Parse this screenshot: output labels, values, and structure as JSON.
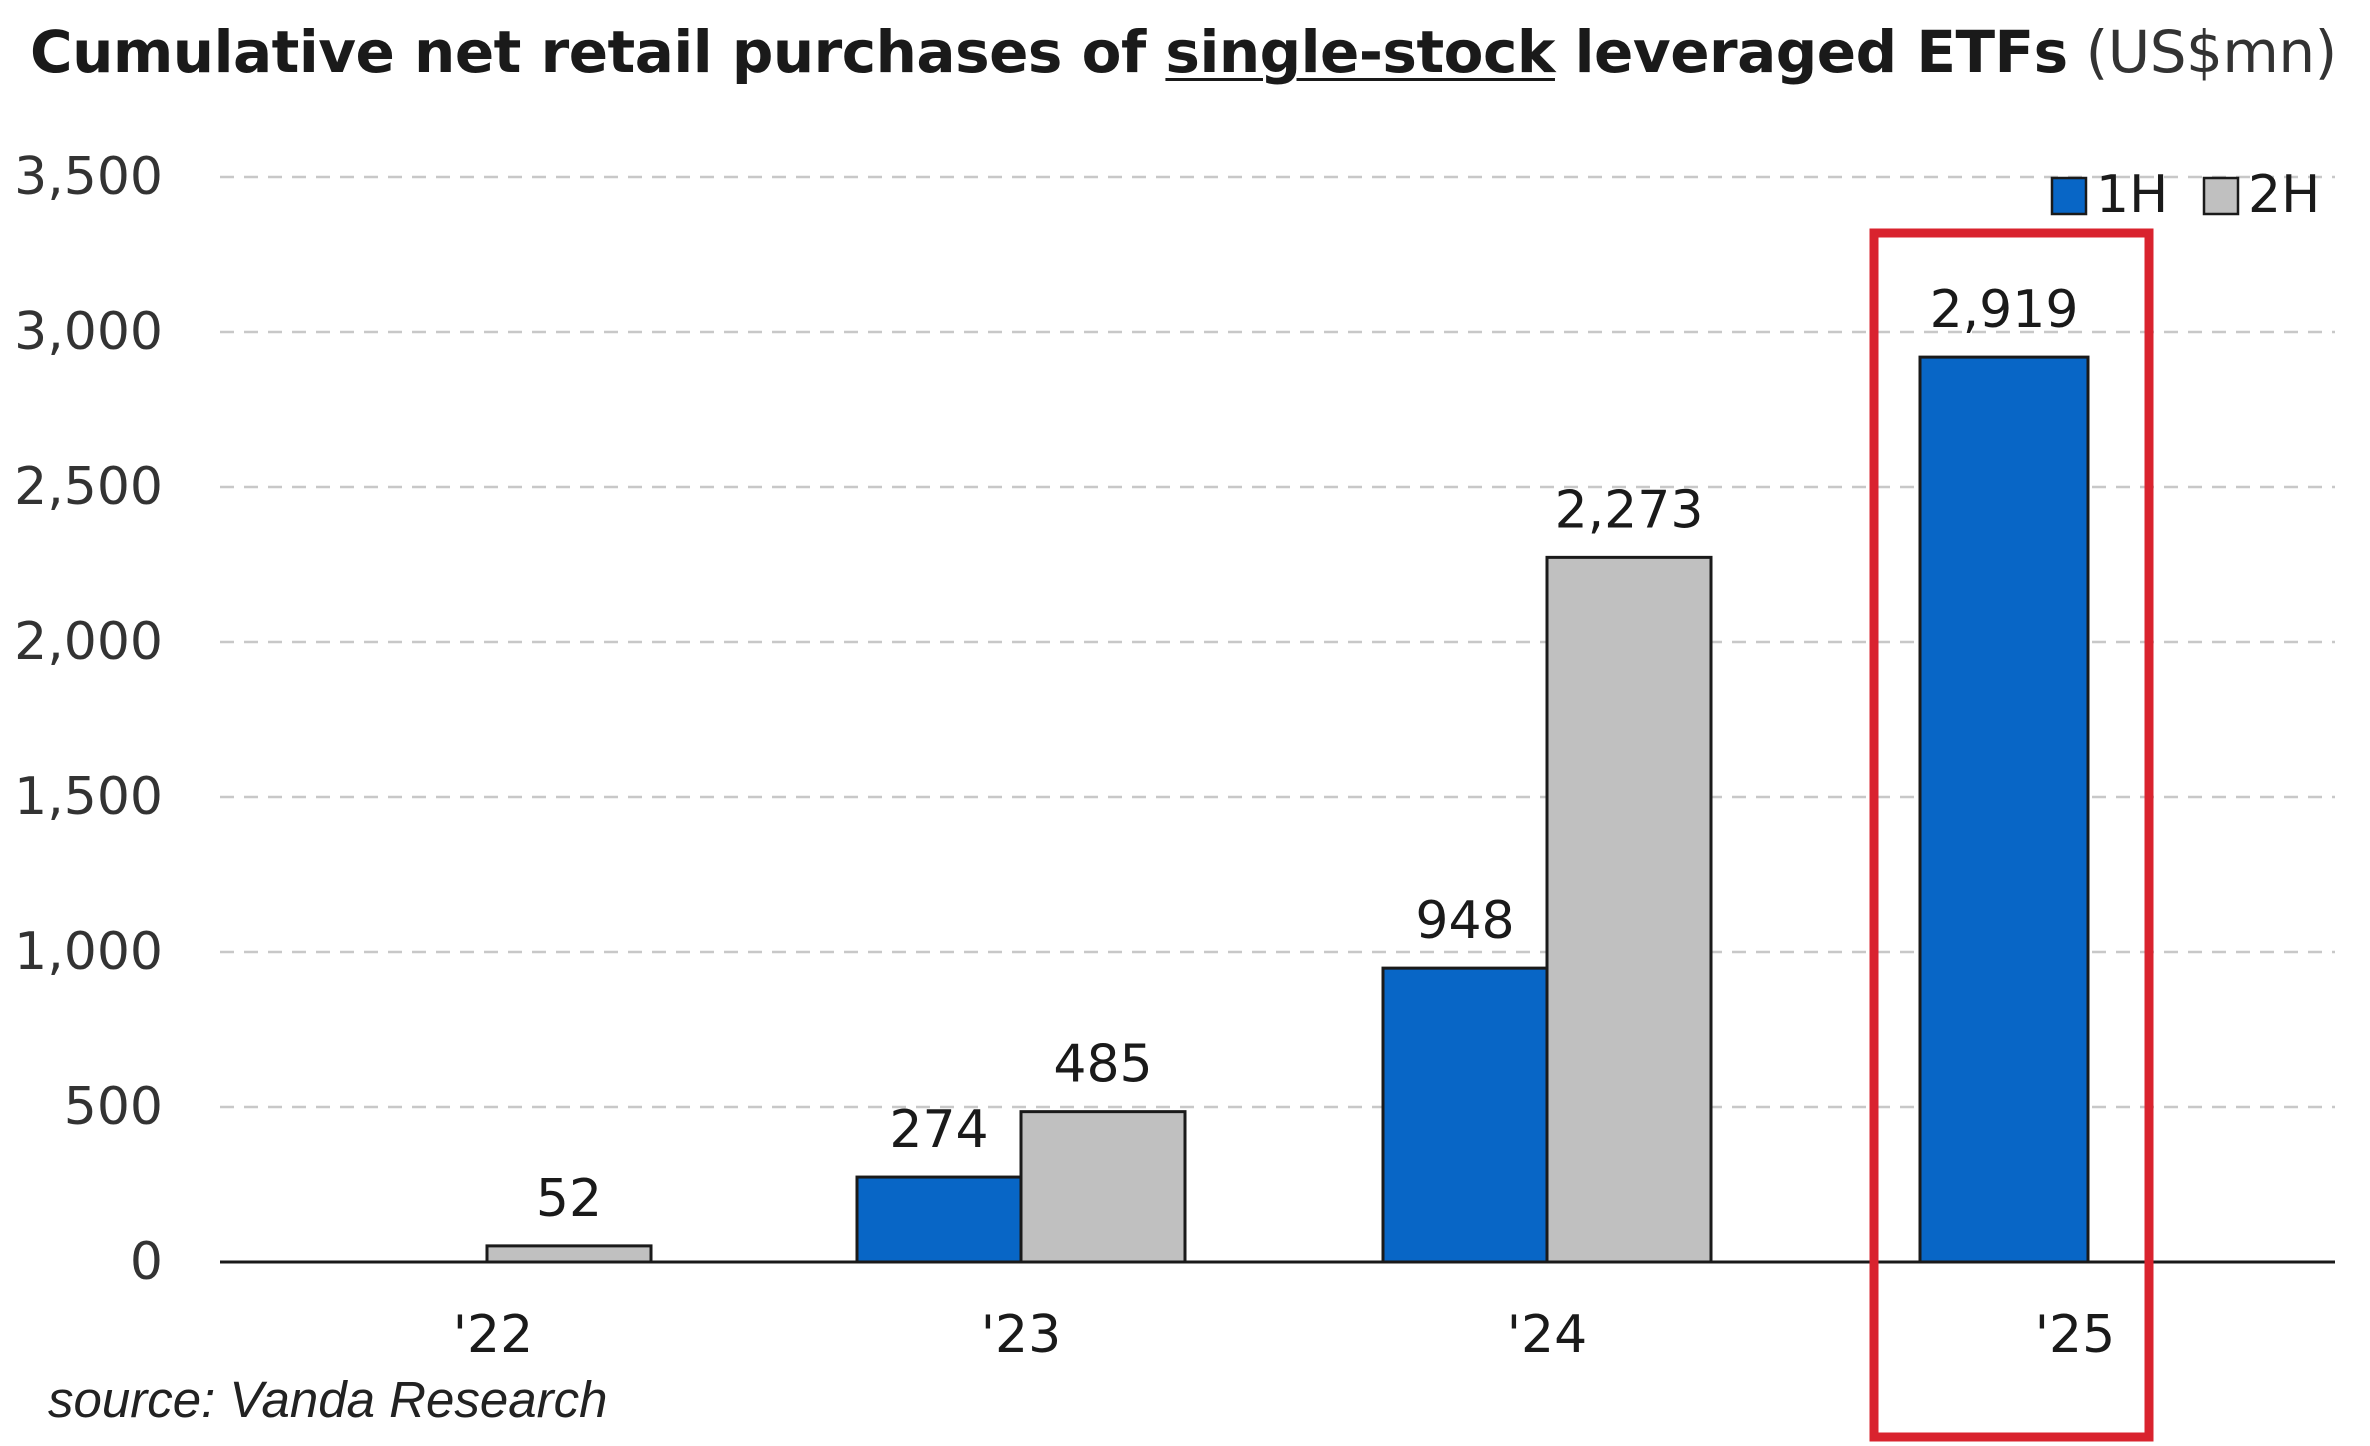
{
  "title": {
    "part1": "Cumulative net retail purchases of ",
    "part2": "single-stock",
    "part3": " leveraged ETFs",
    "part4": " (US$mn)"
  },
  "source": "source: Vanda Research",
  "chart_data": {
    "type": "bar",
    "categories": [
      "'22",
      "'23",
      "'24",
      "'25"
    ],
    "series": [
      {
        "name": "1H",
        "color": "#0866c6",
        "values": [
          null,
          274,
          948,
          2919
        ]
      },
      {
        "name": "2H",
        "color": "#c0c0c0",
        "values": [
          52,
          485,
          2273,
          null
        ]
      }
    ],
    "data_labels": {
      "1H": [
        null,
        "274",
        "948",
        "2,919"
      ],
      "2H": [
        "52",
        "485",
        "2,273",
        null
      ]
    },
    "y_ticks": [
      {
        "value": 0,
        "label": "0"
      },
      {
        "value": 500,
        "label": "500"
      },
      {
        "value": 1000,
        "label": "1,000"
      },
      {
        "value": 1500,
        "label": "1,500"
      },
      {
        "value": 2000,
        "label": "2,000"
      },
      {
        "value": 2500,
        "label": "2,500"
      },
      {
        "value": 3000,
        "label": "3,000"
      },
      {
        "value": 3500,
        "label": "3,500"
      }
    ],
    "ylim": [
      0,
      3500
    ],
    "grid": true,
    "legend": "top-right",
    "highlight_category": "'25",
    "highlight_color": "#d9232e"
  }
}
